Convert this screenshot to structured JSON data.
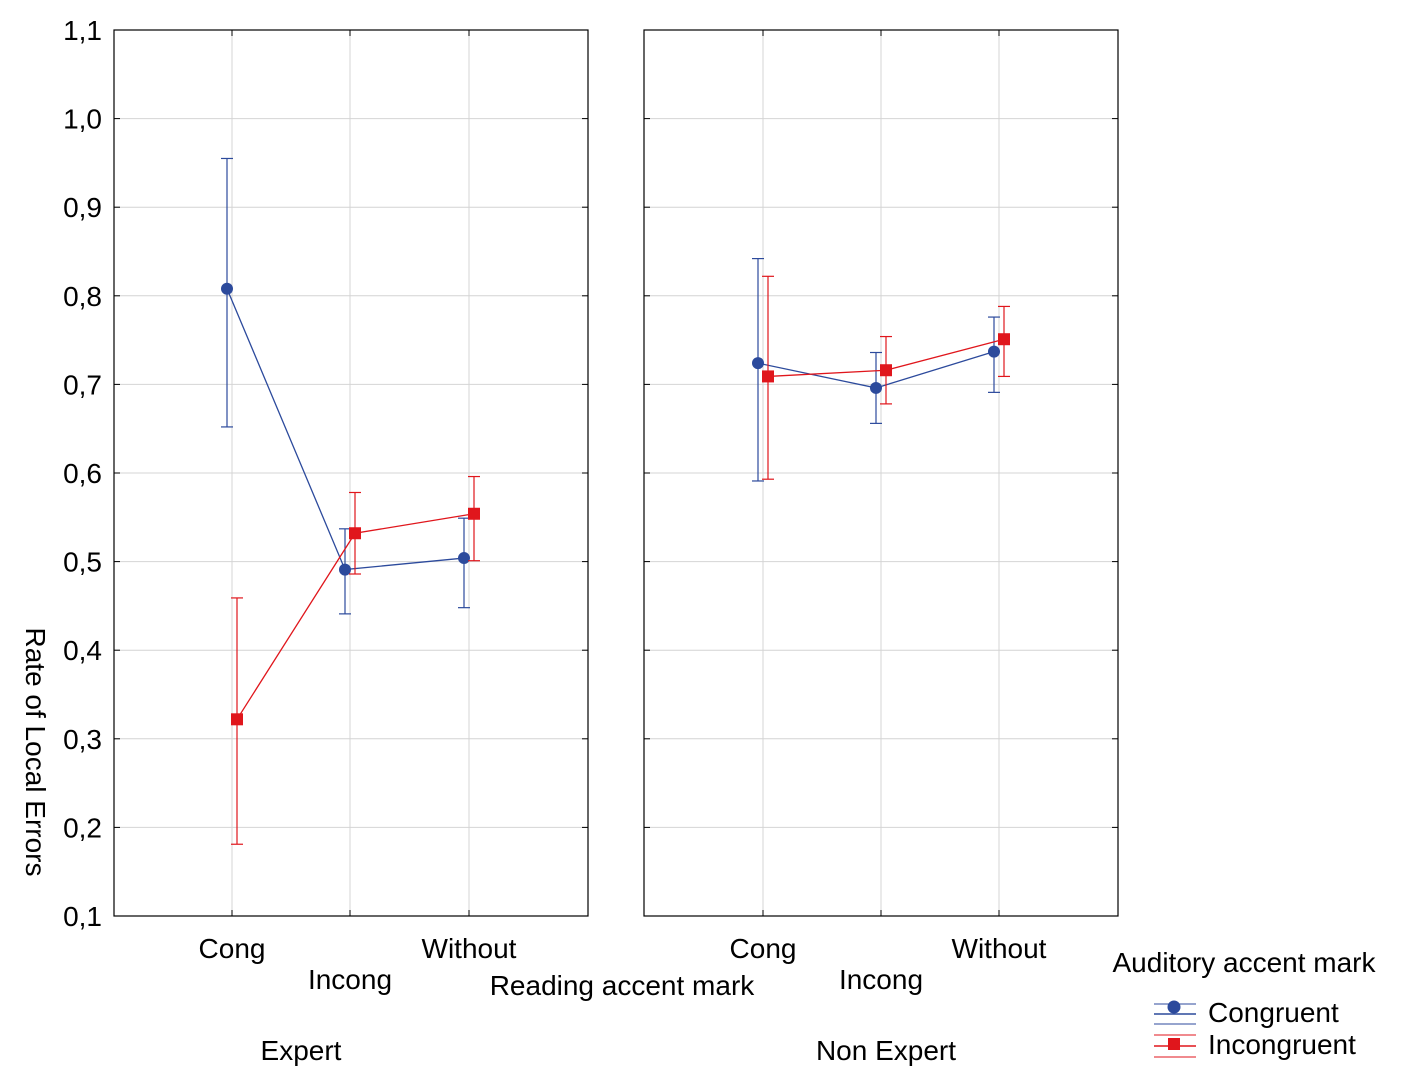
{
  "chart_data": {
    "type": "line",
    "ylabel": "Rate of Local Errors",
    "xlabel": "Reading accent mark",
    "ylim": [
      0.1,
      1.1
    ],
    "yticks": [
      0.1,
      0.2,
      0.3,
      0.4,
      0.5,
      0.6,
      0.7,
      0.8,
      0.9,
      1.0,
      1.1
    ],
    "ytick_labels": [
      "0,1",
      "0,2",
      "0,3",
      "0,4",
      "0,5",
      "0,6",
      "0,7",
      "0,8",
      "0,9",
      "1,0",
      "1,1"
    ],
    "categories": [
      "Cong",
      "Incong",
      "Without"
    ],
    "grid": true,
    "legend": {
      "title": "Auditory accent mark",
      "entries": [
        "Congruent",
        "Incongruent"
      ],
      "position": "bottom-right"
    },
    "colors": {
      "Congruent": "#2c4a9c",
      "Incongruent": "#e0161c"
    },
    "panels": [
      {
        "name": "Expert",
        "series": [
          {
            "name": "Congruent",
            "values": [
              0.808,
              0.491,
              0.504
            ],
            "lower": [
              0.652,
              0.441,
              0.448
            ],
            "upper": [
              0.955,
              0.537,
              0.549
            ]
          },
          {
            "name": "Incongruent",
            "values": [
              0.322,
              0.532,
              0.554
            ],
            "lower": [
              0.181,
              0.486,
              0.501
            ],
            "upper": [
              0.459,
              0.578,
              0.596
            ]
          }
        ]
      },
      {
        "name": "Non Expert",
        "series": [
          {
            "name": "Congruent",
            "values": [
              0.724,
              0.696,
              0.737
            ],
            "lower": [
              0.591,
              0.656,
              0.691
            ],
            "upper": [
              0.842,
              0.736,
              0.776
            ]
          },
          {
            "name": "Incongruent",
            "values": [
              0.709,
              0.716,
              0.751
            ],
            "lower": [
              0.593,
              0.678,
              0.709
            ],
            "upper": [
              0.822,
              0.754,
              0.788
            ]
          }
        ]
      }
    ]
  }
}
